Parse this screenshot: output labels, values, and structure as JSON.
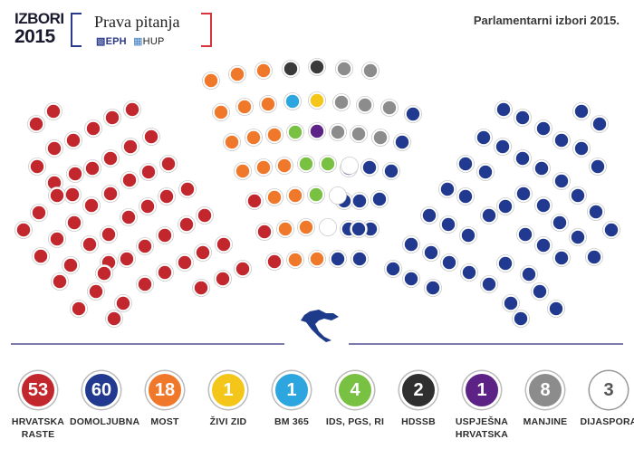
{
  "logo": {
    "line1": "IZBORI",
    "line2": "2015"
  },
  "brand": {
    "title": "Prava pitanja",
    "sub_a": "EPH",
    "sub_b": "HUP"
  },
  "headline": "Parlamentarni izbori 2015.",
  "colors": {
    "red": "#c1272d",
    "blue": "#213a8f",
    "orange": "#f0782a",
    "darkgray": "#3a3a3a",
    "lightblue": "#2da5de",
    "yellow": "#f4c61a",
    "purple": "#5d2285",
    "gray": "#8c8c8c",
    "green": "#79c142",
    "white": "#ffffff"
  },
  "parties": [
    {
      "count": "53",
      "name": "HRVATSKA RASTE",
      "color": "#c1272d",
      "text_color": "#ffffff"
    },
    {
      "count": "60",
      "name": "DOMOLJUBNA",
      "color": "#213a8f",
      "text_color": "#ffffff"
    },
    {
      "count": "18",
      "name": "MOST",
      "color": "#f0782a",
      "text_color": "#ffffff"
    },
    {
      "count": "1",
      "name": "ŽIVI ZID",
      "color": "#f4c61a",
      "text_color": "#ffffff"
    },
    {
      "count": "1",
      "name": "BM 365",
      "color": "#2da5de",
      "text_color": "#ffffff"
    },
    {
      "count": "4",
      "name": "IDS, PGS, RI",
      "color": "#79c142",
      "text_color": "#ffffff"
    },
    {
      "count": "2",
      "name": "HDSSB",
      "color": "#2f2f2f",
      "text_color": "#ffffff"
    },
    {
      "count": "1",
      "name": "USPJEŠNA HRVATSKA",
      "color": "#5d2285",
      "text_color": "#ffffff"
    },
    {
      "count": "8",
      "name": "MANJINE",
      "color": "#8c8c8c",
      "text_color": "#ffffff"
    },
    {
      "count": "3",
      "name": "DIJASPORA",
      "color": "#ffffff",
      "text_color": "#555555"
    }
  ]
}
